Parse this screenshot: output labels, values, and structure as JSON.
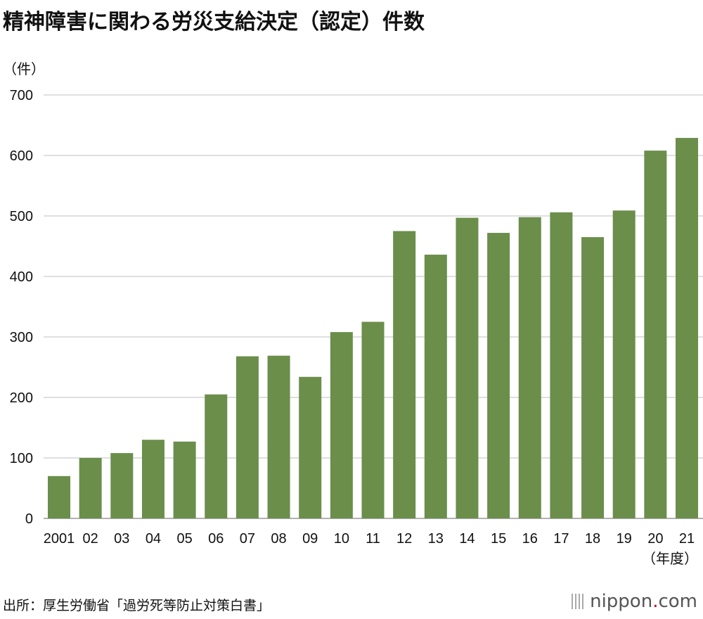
{
  "chart_data": {
    "type": "bar",
    "title": "精神障害に関わる労災支給決定（認定）件数",
    "ylabel": "（件）",
    "xlabel": "（年度）",
    "categories": [
      "2001",
      "02",
      "03",
      "04",
      "05",
      "06",
      "07",
      "08",
      "09",
      "10",
      "11",
      "12",
      "13",
      "14",
      "15",
      "16",
      "17",
      "18",
      "19",
      "20",
      "21"
    ],
    "values": [
      70,
      100,
      108,
      130,
      127,
      205,
      268,
      269,
      234,
      308,
      325,
      475,
      436,
      497,
      472,
      498,
      506,
      465,
      509,
      608,
      629
    ],
    "ylim": [
      0,
      700
    ],
    "yticks": [
      0,
      100,
      200,
      300,
      400,
      500,
      600,
      700
    ],
    "grid": true,
    "bar_color": "#6b8e4b",
    "grid_color": "#cccccc"
  },
  "footer": {
    "source": "出所：厚生労働省「過労死等防止対策白書」",
    "logo": {
      "name": "nippon",
      "dot": ".",
      "suffix": "com"
    }
  }
}
